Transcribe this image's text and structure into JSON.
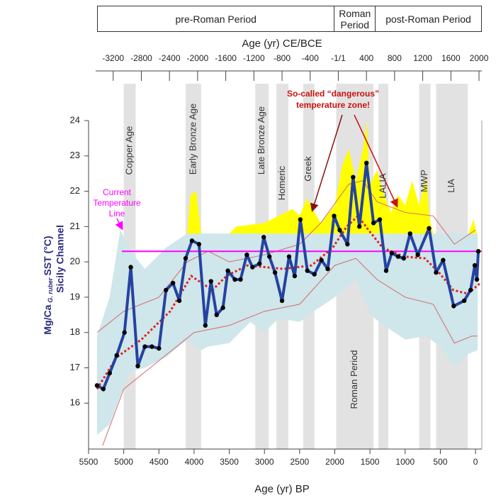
{
  "chart_data": {
    "type": "line",
    "xlabel": "Age (yr) BP",
    "x2label": "Age (yr) CE/BCE",
    "ylabel": {
      "main": "Mg/Ca",
      "sub": "G. ruber",
      "unit": "SST (°C)",
      "second": "Sicily Channel"
    },
    "ylabel_color": "#2a2a80",
    "xlim": [
      5500,
      -90
    ],
    "xticks": [
      5500,
      5000,
      4500,
      4000,
      3500,
      3000,
      2500,
      2000,
      1500,
      1000,
      500,
      0
    ],
    "x2lim": [
      -3550,
      2040
    ],
    "x2ticks": [
      -3200,
      -2800,
      -2400,
      -2000,
      -1600,
      -1200,
      -800,
      -400,
      {
        "value": 0,
        "label": "-1/1"
      },
      400,
      800,
      1200,
      1600,
      2000
    ],
    "ylim": [
      14.7,
      24
    ],
    "yticks": [
      16,
      17,
      18,
      19,
      20,
      21,
      22,
      23,
      24
    ],
    "periods": [
      {
        "name": "pre-Roman Period",
        "start": -3430,
        "end": -50
      },
      {
        "name": "Roman Period",
        "start": -50,
        "end": 530
      },
      {
        "name": "post-Roman Period",
        "start": 530,
        "end": 2040
      }
    ],
    "bands": [
      {
        "name": "Copper Age",
        "start": 5000,
        "end": 4830
      },
      {
        "name": "Early Bronze Age",
        "start": 4120,
        "end": 3900
      },
      {
        "name": "Late Bronze Age",
        "start": 3130,
        "end": 2940
      },
      {
        "name": "Homeric",
        "start": 2830,
        "end": 2660
      },
      {
        "name": "Greek",
        "start": 2450,
        "end": 2290
      },
      {
        "name": "Roman Period",
        "start": 1980,
        "end": 1450
      },
      {
        "name": "LALIA",
        "start": 1380,
        "end": 1240
      },
      {
        "name": "MWP",
        "start": 800,
        "end": 640
      },
      {
        "name": "LIA",
        "start": 560,
        "end": 110
      }
    ],
    "band_color": "#e2e2e2",
    "uncertainty": {
      "color": "#cfe6ea",
      "x": [
        5380,
        5200,
        5050,
        4900,
        4700,
        4400,
        4100,
        3900,
        3800,
        3500,
        3200,
        3000,
        2800,
        2500,
        2300,
        2000,
        1700,
        1500,
        1300,
        1000,
        700,
        500,
        300,
        100,
        -30
      ],
      "upper": [
        17.9,
        19.0,
        20.9,
        20.3,
        19.8,
        20.4,
        20.8,
        20.8,
        20.8,
        20.8,
        20.8,
        20.8,
        20.8,
        20.8,
        20.8,
        20.8,
        20.8,
        20.8,
        20.8,
        20.8,
        20.8,
        20.8,
        20.8,
        20.8,
        20.8
      ],
      "lower": [
        15.1,
        15.4,
        16.2,
        16.9,
        17.0,
        17.3,
        17.8,
        17.5,
        17.6,
        17.7,
        18.3,
        18.0,
        18.4,
        18.3,
        18.6,
        19.0,
        19.5,
        18.5,
        18.2,
        17.8,
        17.9,
        17.6,
        17.0,
        17.4,
        17.5
      ]
    },
    "hot_zone": {
      "color": "#ffff00",
      "x": [
        4100,
        4050,
        3970,
        3900,
        null,
        3500,
        3400,
        3000,
        2800,
        2600,
        2500,
        2400,
        2200,
        2000,
        1900,
        1800,
        1700,
        1600,
        1550,
        1500,
        1400,
        1300,
        1200,
        1100,
        1000,
        900,
        800,
        700,
        650,
        600,
        null,
        100,
        30,
        -20
      ],
      "upper": [
        20.8,
        21.9,
        22.0,
        20.8,
        null,
        20.8,
        21.0,
        21.1,
        21.3,
        21.5,
        21.3,
        21.8,
        21.1,
        21.6,
        22.7,
        23.2,
        22.3,
        23.2,
        24.0,
        22.2,
        22.6,
        21.9,
        21.4,
        21.9,
        21.6,
        22.3,
        21.6,
        22.4,
        21.2,
        20.8,
        null,
        20.8,
        21.2,
        20.8
      ],
      "lower": [
        20.8,
        20.8,
        20.8,
        20.8,
        null,
        20.8,
        20.8,
        20.8,
        20.8,
        20.8,
        20.8,
        20.8,
        20.8,
        20.8,
        20.8,
        20.8,
        20.8,
        20.8,
        20.8,
        20.8,
        20.8,
        20.8,
        20.8,
        20.8,
        20.8,
        20.8,
        20.8,
        20.8,
        20.8,
        20.8,
        null,
        20.8,
        20.8,
        20.8
      ]
    },
    "envelope_color": "#d46a6a",
    "envelope_upper": {
      "x": [
        5380,
        5000,
        4500,
        4100,
        3800,
        3500,
        3000,
        2500,
        2200,
        1800,
        1600,
        1400,
        1000,
        600,
        300,
        0
      ],
      "values": [
        18.0,
        18.6,
        19.0,
        20.0,
        20.3,
        20.0,
        20.2,
        20.5,
        21.1,
        22.2,
        22.3,
        21.7,
        21.4,
        21.3,
        20.5,
        20.9
      ]
    },
    "envelope_lower": {
      "x": [
        5300,
        5000,
        4500,
        4000,
        3500,
        3000,
        2500,
        2000,
        1700,
        1400,
        1000,
        600,
        300,
        50,
        -30
      ],
      "values": [
        14.8,
        16.4,
        17.2,
        18.0,
        18.2,
        18.6,
        18.8,
        19.9,
        20.1,
        19.5,
        19.0,
        18.8,
        17.7,
        17.9,
        17.9
      ]
    },
    "smooth": {
      "color": "#e02020",
      "x": [
        5380,
        5100,
        4750,
        4340,
        4040,
        3740,
        3540,
        3240,
        2730,
        2330,
        2030,
        1830,
        1670,
        1520,
        1320,
        1020,
        720,
        520,
        315,
        110,
        -70
      ],
      "values": [
        16.4,
        17.3,
        17.8,
        18.6,
        19.6,
        19.2,
        19.6,
        19.9,
        19.8,
        19.9,
        20.4,
        21.0,
        21.3,
        20.9,
        20.4,
        20.15,
        20.1,
        19.7,
        19.2,
        19.1,
        19.4
      ]
    },
    "sst": {
      "color": "#2443a0",
      "marker_color": "#000000",
      "x": [
        5380,
        5290,
        5200,
        5100,
        4990,
        4900,
        4800,
        4700,
        4600,
        4500,
        4400,
        4300,
        4210,
        4120,
        4030,
        3930,
        3840,
        3760,
        3680,
        3590,
        3520,
        3420,
        3340,
        3250,
        3170,
        3070,
        3010,
        2930,
        2850,
        2750,
        2650,
        2570,
        2490,
        2390,
        2290,
        2190,
        2100,
        2010,
        1930,
        1820,
        1740,
        1650,
        1550,
        1450,
        1360,
        1270,
        1190,
        1100,
        1020,
        930,
        820,
        660,
        560,
        460,
        310,
        160,
        70,
        10,
        -20,
        -40
      ],
      "values": [
        16.5,
        16.4,
        16.85,
        17.35,
        18.0,
        19.85,
        17.05,
        17.6,
        17.6,
        17.55,
        19.2,
        19.4,
        18.9,
        20.1,
        20.6,
        20.5,
        18.2,
        19.45,
        18.5,
        18.7,
        19.75,
        19.5,
        19.5,
        20.2,
        19.85,
        19.95,
        20.7,
        20.15,
        19.7,
        18.9,
        20.15,
        19.6,
        21.2,
        19.75,
        19.65,
        20.05,
        19.8,
        21.3,
        20.9,
        20.5,
        22.4,
        21.0,
        22.8,
        21.1,
        21.2,
        19.75,
        20.25,
        20.15,
        20.1,
        20.8,
        20.2,
        20.95,
        19.7,
        20.05,
        18.75,
        18.9,
        19.2,
        19.9,
        19.5,
        20.3
      ]
    },
    "current_temperature": {
      "value": 20.3,
      "color": "#ff00ff",
      "label": [
        "Current",
        "Temperature",
        "Line"
      ]
    },
    "annotation": {
      "color": "#cc1111",
      "lines": [
        "So-called “dangerous”",
        "temperature zone!"
      ]
    }
  }
}
